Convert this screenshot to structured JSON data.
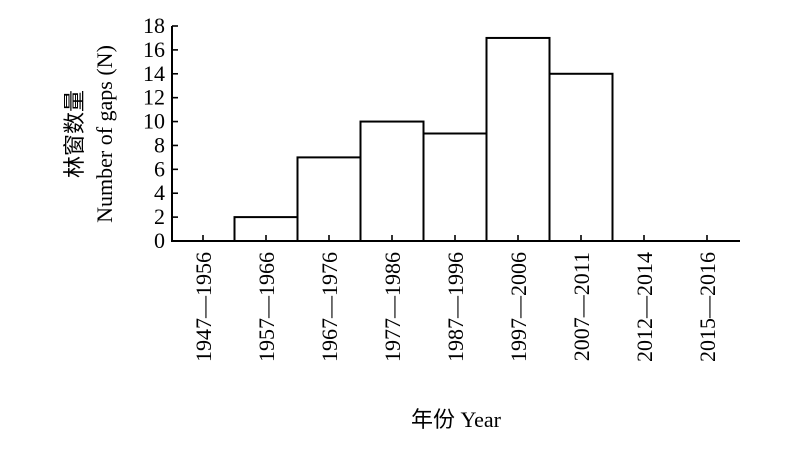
{
  "chart_data": {
    "type": "bar",
    "categories": [
      "1947—1956",
      "1957—1966",
      "1967—1976",
      "1977—1986",
      "1987—1996",
      "1997—2006",
      "2007—2011",
      "2012—2014",
      "2015—2016"
    ],
    "values": [
      0,
      2,
      7,
      10,
      9,
      17,
      14,
      0,
      0
    ],
    "title": "",
    "xlabel": "年份 Year",
    "ylabel_cn": "林窗数量",
    "ylabel": "Number of gaps (N)",
    "ylim": [
      0,
      18
    ],
    "yticks": [
      0,
      2,
      4,
      6,
      8,
      10,
      12,
      14,
      16,
      18
    ],
    "grid": false,
    "legend": "none"
  }
}
